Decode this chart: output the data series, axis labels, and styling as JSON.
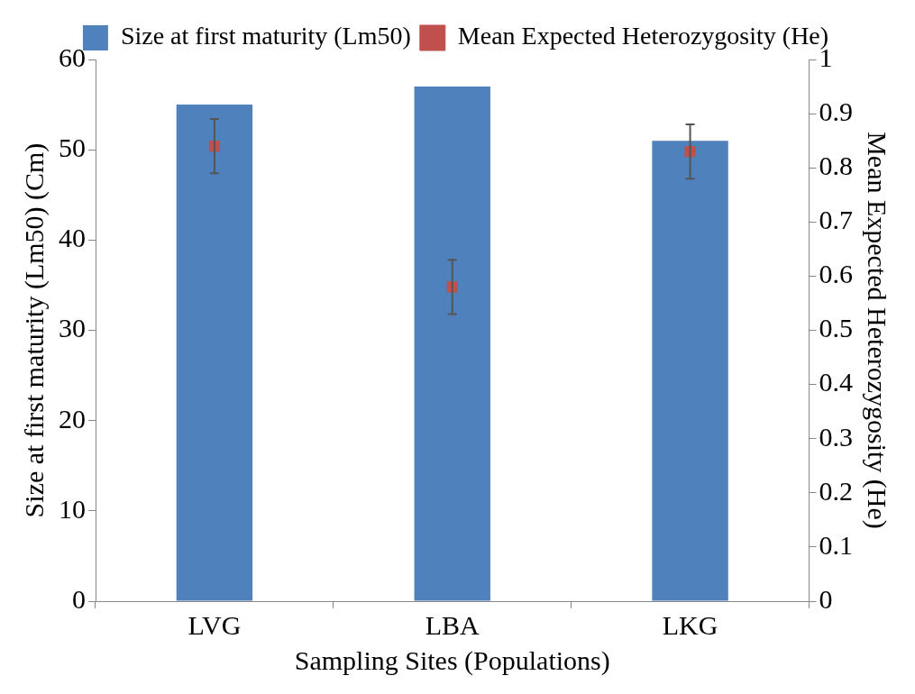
{
  "chart_data": {
    "type": "bar",
    "xlabel": "Sampling Sites (Populations)",
    "ylabel": "Size at first maturity (Lm50) (Cm)",
    "y2label": "Mean Expected Heterozygosity (He)",
    "categories": [
      "LVG",
      "LBA",
      "LKG"
    ],
    "series": [
      {
        "name": "Size at first maturity (Lm50)",
        "color": "#4f81bd",
        "values": [
          55,
          57,
          51
        ]
      },
      {
        "name": "Mean Expected Heterozygosity (He)",
        "type": "scatter",
        "axis": "y2",
        "marker": "square",
        "color": "#c0504d",
        "values": [
          0.84,
          0.58,
          0.83
        ],
        "errors": [
          0.05,
          0.05,
          0.05
        ]
      }
    ],
    "ylim": [
      0,
      60
    ],
    "yticks": [
      0,
      10,
      20,
      30,
      40,
      50,
      60
    ],
    "y2lim": [
      0,
      1
    ],
    "y2ticks": [
      0,
      0.1,
      0.2,
      0.3,
      0.4,
      0.5,
      0.6,
      0.7,
      0.8,
      0.9,
      1
    ],
    "grid": false,
    "legend": "top"
  }
}
